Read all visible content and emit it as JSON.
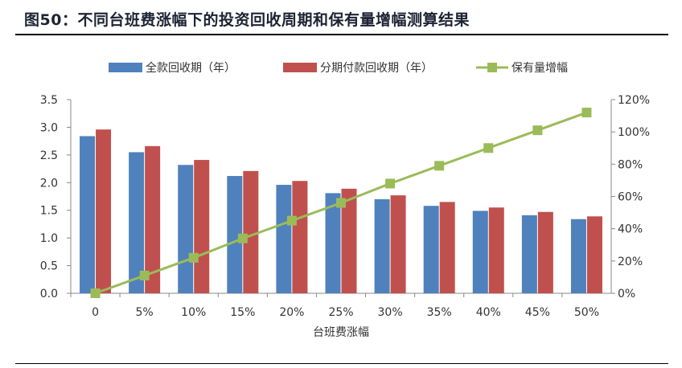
{
  "title": "图50：不同台班费涨幅下的投资回收周期和保有量增幅测算结果",
  "chart_data": {
    "type": "bar+line",
    "title": "图50：不同台班费涨幅下的投资回收周期和保有量增幅测算结果",
    "xlabel": "台班费涨幅",
    "categories": [
      "0",
      "5%",
      "10%",
      "15%",
      "20%",
      "25%",
      "30%",
      "35%",
      "40%",
      "45%",
      "50%"
    ],
    "ylim_left": [
      0,
      3.5
    ],
    "yticks_left": [
      "0.0",
      "0.5",
      "1.0",
      "1.5",
      "2.0",
      "2.5",
      "3.0",
      "3.5"
    ],
    "ylim_right": [
      0,
      120
    ],
    "yticks_right": [
      "0%",
      "20%",
      "40%",
      "60%",
      "80%",
      "100%",
      "120%"
    ],
    "legend_position": "top",
    "series": [
      {
        "name": "全款回收期（年）",
        "type": "bar",
        "axis": "left",
        "color": "#4f81bd",
        "values": [
          2.84,
          2.55,
          2.32,
          2.12,
          1.96,
          1.81,
          1.7,
          1.58,
          1.49,
          1.41,
          1.34
        ]
      },
      {
        "name": "分期付款回收期（年）",
        "type": "bar",
        "axis": "left",
        "color": "#c0504d",
        "values": [
          2.96,
          2.66,
          2.41,
          2.21,
          2.03,
          1.89,
          1.77,
          1.65,
          1.55,
          1.47,
          1.39
        ]
      },
      {
        "name": "保有量增幅",
        "type": "line",
        "axis": "right",
        "color": "#9bbb59",
        "values": [
          0,
          11,
          22,
          34,
          45,
          56,
          68,
          79,
          90,
          101,
          112
        ]
      }
    ]
  }
}
